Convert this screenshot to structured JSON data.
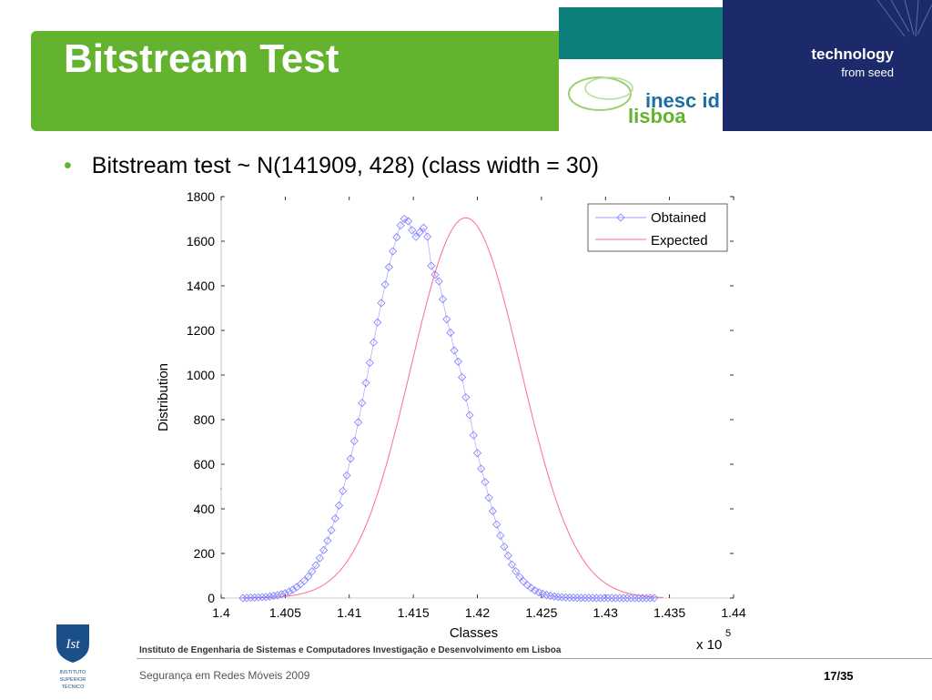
{
  "slide": {
    "title": "Bitstream Test",
    "bullet": "Bitstream test ~ N(141909, 428) (class width = 30)",
    "brand_line1": "technology",
    "brand_line2": "from seed",
    "logo_text_top": "inesc id",
    "logo_text_bottom": "lisboa",
    "footer_org": "Instituto de Engenharia de Sistemas e Computadores Investigação e Desenvolvimento em Lisboa",
    "footer_course": "Segurança em Redes Móveis 2009",
    "page_number": "17/35",
    "ist_logo_lines": [
      "INSTITUTO",
      "SUPERIOR",
      "TÉCNICO"
    ],
    "colors": {
      "green": "#63b32e",
      "teal": "#0d7f7a",
      "navy": "#1c2a6b"
    }
  },
  "chart_data": {
    "type": "line",
    "xlabel": "Classes",
    "ylabel": "Distribution",
    "x_multiplier_label": "x 10",
    "x_multiplier_exp": "5",
    "xlim": [
      1.4,
      1.44
    ],
    "ylim": [
      0,
      1800
    ],
    "x_ticks": [
      "1.4",
      "1.405",
      "1.41",
      "1.415",
      "1.42",
      "1.425",
      "1.43",
      "1.435",
      "1.44"
    ],
    "y_ticks": [
      "0",
      "200",
      "400",
      "600",
      "800",
      "1000",
      "1200",
      "1400",
      "1600",
      "1800"
    ],
    "legend_position": "top-right",
    "grid": false,
    "series": [
      {
        "name": "Obtained",
        "marker": "diamond",
        "color": "#7b7bff",
        "x": [
          1.4017,
          1.402,
          1.4023,
          1.4026,
          1.4029,
          1.4032,
          1.4035,
          1.4038,
          1.4041,
          1.4044,
          1.4047,
          1.405,
          1.4053,
          1.4056,
          1.4059,
          1.4062,
          1.4065,
          1.4068,
          1.4071,
          1.4074,
          1.4077,
          1.408,
          1.4083,
          1.4086,
          1.4089,
          1.4092,
          1.4095,
          1.4098,
          1.4101,
          1.4104,
          1.4107,
          1.411,
          1.4113,
          1.4116,
          1.4119,
          1.4122,
          1.4125,
          1.4128,
          1.4131,
          1.4134,
          1.4137,
          1.414,
          1.4143,
          1.4146,
          1.4149,
          1.4152,
          1.4155,
          1.4158,
          1.4161,
          1.4164,
          1.4167,
          1.417,
          1.4173,
          1.4176,
          1.4179,
          1.4182,
          1.4185,
          1.4188,
          1.4191,
          1.4194,
          1.4197,
          1.42,
          1.4203,
          1.4206,
          1.4209,
          1.4212,
          1.4215,
          1.4218,
          1.4221,
          1.4224,
          1.4227,
          1.423,
          1.4233,
          1.4236,
          1.4239,
          1.4242,
          1.4245,
          1.4248,
          1.4251,
          1.4254,
          1.4257,
          1.426,
          1.4263,
          1.4266,
          1.4269,
          1.4272,
          1.4275,
          1.4278,
          1.4281,
          1.4284,
          1.4287,
          1.429,
          1.4293,
          1.4296,
          1.4299,
          1.4302,
          1.4305,
          1.4308,
          1.4311,
          1.4314,
          1.4317,
          1.432,
          1.4323,
          1.4326,
          1.4329,
          1.4332,
          1.4335,
          1.4338
        ],
        "y": [
          0,
          1,
          2,
          2,
          3,
          4,
          5,
          7,
          10,
          13,
          17,
          22,
          29,
          38,
          49,
          62,
          78,
          97,
          120,
          147,
          179,
          215,
          257,
          304,
          357,
          415,
          480,
          550,
          625,
          704,
          788,
          875,
          965,
          1055,
          1146,
          1236,
          1323,
          1406,
          1484,
          1555,
          1618,
          1671,
          1700,
          1690,
          1650,
          1620,
          1640,
          1660,
          1620,
          1490,
          1450,
          1420,
          1340,
          1250,
          1190,
          1110,
          1060,
          990,
          900,
          820,
          730,
          650,
          580,
          520,
          450,
          390,
          330,
          280,
          230,
          190,
          150,
          120,
          95,
          75,
          58,
          45,
          34,
          26,
          19,
          14,
          10,
          7,
          5,
          4,
          3,
          2,
          2,
          1,
          1,
          1,
          1,
          1,
          0,
          0,
          0,
          0,
          0,
          0,
          0,
          0,
          0,
          0,
          0,
          0,
          0,
          0,
          0,
          0
        ],
        "y_note": "estimated"
      },
      {
        "name": "Expected",
        "color": "#ff6d8a"
      }
    ],
    "expected_mean": 141909,
    "expected_sd": 428,
    "class_width": 30
  }
}
